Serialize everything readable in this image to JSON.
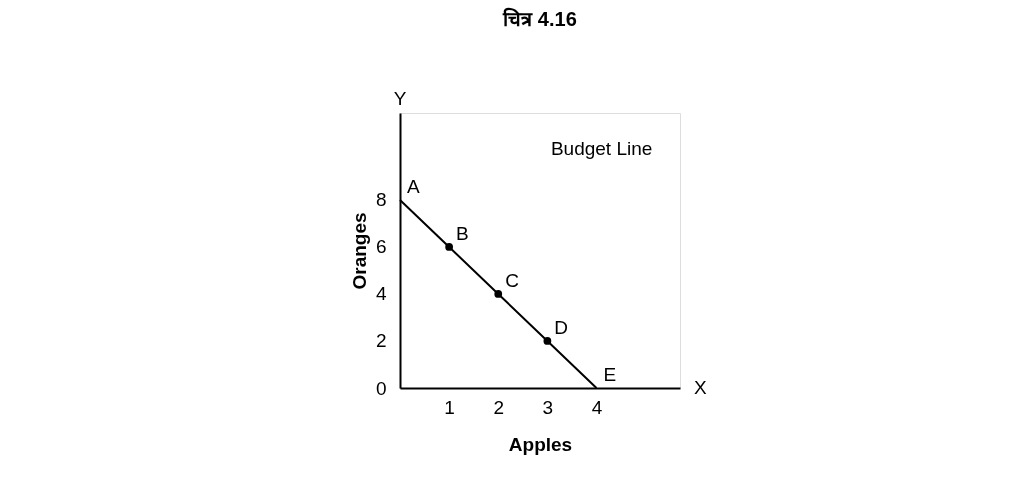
{
  "chart_data": {
    "type": "line",
    "title": "चित्र 4.16",
    "xlabel": "Apples",
    "ylabel": "Oranges",
    "series": [
      {
        "color": "#000000",
        "x": [
          0,
          1,
          2,
          3,
          4
        ],
        "values": [
          8,
          6,
          4,
          2,
          0
        ]
      },
      {
        "type": "scatter",
        "color": "#000000",
        "x": [
          1,
          2,
          3
        ],
        "values": [
          6,
          4,
          2
        ],
        "marker": "circle"
      }
    ],
    "xlim": [
      0,
      5.7
    ],
    "ylim": [
      0,
      11.7
    ],
    "xticks": [
      1,
      2,
      3,
      4
    ],
    "yticks": [
      0,
      2,
      4,
      6,
      8
    ],
    "grid": false,
    "annotations": [
      "Budget Line",
      "X",
      "Y",
      {
        "text": "A",
        "x": 0,
        "y": 8
      },
      {
        "text": "B",
        "x": 1,
        "y": 6
      },
      {
        "text": "C",
        "x": 2,
        "y": 4
      },
      {
        "text": "D",
        "x": 3,
        "y": 2
      },
      {
        "text": "E",
        "x": 4,
        "y": 0
      }
    ]
  }
}
